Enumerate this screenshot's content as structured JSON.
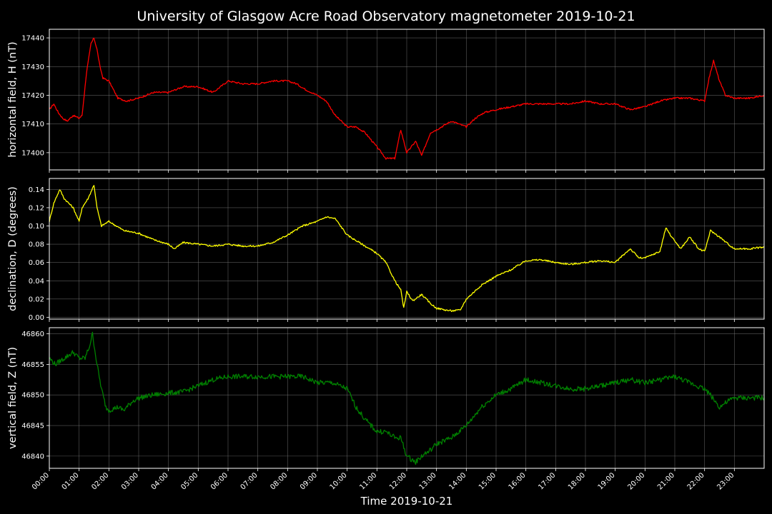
{
  "figure": {
    "title": "University of Glasgow Acre Road Observatory magnetometer 2019-10-21",
    "xlabel": "Time 2019-10-21",
    "x_ticks": [
      "00:00",
      "01:00",
      "02:00",
      "03:00",
      "04:00",
      "05:00",
      "06:00",
      "07:00",
      "08:00",
      "09:00",
      "10:00",
      "11:00",
      "12:00",
      "13:00",
      "14:00",
      "15:00",
      "16:00",
      "17:00",
      "18:00",
      "19:00",
      "20:00",
      "21:00",
      "22:00",
      "23:00"
    ],
    "colors": {
      "background": "#000000",
      "grid": "#808080",
      "text": "#ffffff"
    }
  },
  "chart_data": [
    {
      "type": "line",
      "ylabel": "horizontal field, H (nT)",
      "color": "#ff0000",
      "ylim": [
        17394,
        17443
      ],
      "yticks": [
        17400,
        17410,
        17420,
        17430,
        17440
      ],
      "xlim": [
        0,
        24
      ],
      "x": [
        0.0,
        0.15,
        0.3,
        0.45,
        0.6,
        0.8,
        1.0,
        1.1,
        1.25,
        1.4,
        1.5,
        1.6,
        1.7,
        1.8,
        2.0,
        2.3,
        2.6,
        3.0,
        3.5,
        4.0,
        4.5,
        5.0,
        5.5,
        6.0,
        6.5,
        7.0,
        7.5,
        8.0,
        8.3,
        8.6,
        9.0,
        9.3,
        9.6,
        10.0,
        10.3,
        10.6,
        11.0,
        11.3,
        11.6,
        11.8,
        12.0,
        12.3,
        12.5,
        12.8,
        13.0,
        13.5,
        14.0,
        14.3,
        14.6,
        15.0,
        15.5,
        16.0,
        16.5,
        17.0,
        17.5,
        18.0,
        18.5,
        19.0,
        19.5,
        20.0,
        20.5,
        21.0,
        21.5,
        22.0,
        22.15,
        22.3,
        22.5,
        22.7,
        23.0,
        23.5,
        24.0
      ],
      "y": [
        17415,
        17417,
        17414,
        17412,
        17411,
        17413,
        17412,
        17413,
        17428,
        17438,
        17440,
        17436,
        17430,
        17426,
        17425,
        17419,
        17418,
        17419,
        17421,
        17421,
        17423,
        17423,
        17421,
        17425,
        17424,
        17424,
        17425,
        17425,
        17424,
        17422,
        17420,
        17418,
        17413,
        17409,
        17409,
        17407,
        17402,
        17398,
        17398,
        17408,
        17400,
        17404,
        17399,
        17407,
        17408,
        17411,
        17409,
        17412,
        17414,
        17415,
        17416,
        17417,
        17417,
        17417,
        17417,
        17418,
        17417,
        17417,
        17415,
        17416,
        17418,
        17419,
        17419,
        17418,
        17426,
        17432,
        17425,
        17420,
        17419,
        17419,
        17420
      ]
    },
    {
      "type": "line",
      "ylabel": "declination, D (degrees)",
      "color": "#ffff00",
      "ylim": [
        -0.002,
        0.152
      ],
      "yticks": [
        0.0,
        0.02,
        0.04,
        0.06,
        0.08,
        0.1,
        0.12,
        0.14
      ],
      "xlim": [
        0,
        24
      ],
      "x": [
        0.0,
        0.15,
        0.35,
        0.5,
        0.8,
        1.0,
        1.1,
        1.3,
        1.5,
        1.6,
        1.75,
        2.0,
        2.5,
        3.0,
        3.5,
        4.0,
        4.2,
        4.5,
        5.0,
        5.5,
        6.0,
        6.5,
        7.0,
        7.5,
        8.0,
        8.5,
        9.0,
        9.3,
        9.6,
        10.0,
        10.5,
        11.0,
        11.3,
        11.6,
        11.8,
        11.9,
        12.0,
        12.2,
        12.5,
        12.8,
        13.0,
        13.3,
        13.5,
        13.8,
        14.0,
        14.5,
        15.0,
        15.5,
        16.0,
        16.5,
        17.0,
        17.5,
        18.0,
        18.5,
        19.0,
        19.5,
        19.8,
        20.0,
        20.5,
        20.7,
        20.9,
        21.2,
        21.5,
        21.8,
        22.0,
        22.2,
        22.5,
        22.8,
        23.0,
        23.5,
        24.0
      ],
      "y": [
        0.105,
        0.125,
        0.14,
        0.13,
        0.12,
        0.105,
        0.12,
        0.13,
        0.145,
        0.12,
        0.1,
        0.105,
        0.095,
        0.092,
        0.085,
        0.08,
        0.075,
        0.082,
        0.08,
        0.078,
        0.08,
        0.078,
        0.078,
        0.082,
        0.09,
        0.1,
        0.105,
        0.11,
        0.108,
        0.09,
        0.08,
        0.07,
        0.06,
        0.04,
        0.03,
        0.01,
        0.028,
        0.018,
        0.025,
        0.015,
        0.01,
        0.008,
        0.007,
        0.008,
        0.02,
        0.035,
        0.045,
        0.052,
        0.062,
        0.063,
        0.06,
        0.058,
        0.06,
        0.062,
        0.06,
        0.075,
        0.065,
        0.065,
        0.072,
        0.098,
        0.088,
        0.075,
        0.088,
        0.075,
        0.072,
        0.095,
        0.088,
        0.08,
        0.075,
        0.075,
        0.077
      ]
    },
    {
      "type": "line",
      "ylabel": "vertical field, Z (nT)",
      "color": "#008000",
      "ylim": [
        46838,
        46861
      ],
      "yticks": [
        46840,
        46845,
        46850,
        46855,
        46860
      ],
      "xlim": [
        0,
        24
      ],
      "x": [
        0.0,
        0.2,
        0.5,
        0.8,
        1.0,
        1.2,
        1.35,
        1.45,
        1.6,
        1.75,
        1.9,
        2.0,
        2.3,
        2.5,
        2.8,
        3.0,
        3.5,
        4.0,
        4.5,
        5.0,
        5.5,
        6.0,
        6.5,
        7.0,
        7.5,
        8.0,
        8.5,
        9.0,
        9.5,
        10.0,
        10.3,
        10.6,
        11.0,
        11.3,
        11.6,
        11.8,
        12.0,
        12.3,
        12.5,
        12.8,
        13.0,
        13.5,
        14.0,
        14.5,
        15.0,
        15.5,
        16.0,
        16.5,
        17.0,
        17.5,
        18.0,
        18.5,
        19.0,
        19.5,
        20.0,
        20.5,
        21.0,
        21.5,
        22.0,
        22.2,
        22.5,
        22.8,
        23.0,
        23.5,
        24.0
      ],
      "y": [
        46856,
        46855,
        46856,
        46857,
        46856,
        46856,
        46858,
        46860,
        46855,
        46851,
        46848,
        46847.5,
        46848,
        46847.5,
        46849,
        46849.5,
        46850,
        46850.3,
        46850.5,
        46851.5,
        46852.5,
        46853,
        46853,
        46853,
        46853,
        46853,
        46853,
        46852,
        46852,
        46851,
        46848,
        46846,
        46844,
        46844,
        46843,
        46843,
        46840,
        46839,
        46840,
        46841,
        46842,
        46843,
        46845,
        46848,
        46850,
        46851,
        46852.5,
        46852,
        46851.5,
        46851,
        46851,
        46851.5,
        46852,
        46852.5,
        46852,
        46852.5,
        46853,
        46852,
        46851,
        46850,
        46848,
        46849,
        46849.5,
        46849.5,
        46849.5
      ]
    }
  ]
}
